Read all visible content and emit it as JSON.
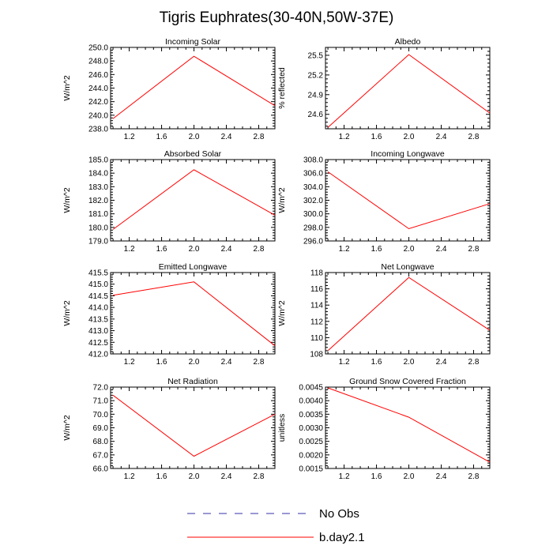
{
  "figure": {
    "title": "Tigris Euphrates(30-40N,50W-37E)"
  },
  "legend": {
    "items": [
      {
        "label": "No Obs",
        "color": "#3333aa",
        "dash": "dashed"
      },
      {
        "label": "b.day2.1",
        "color": "#ff0000",
        "dash": "solid"
      }
    ]
  },
  "chart_data": [
    {
      "type": "line",
      "title": "Incoming Solar",
      "ylabel": "W/m^2",
      "xlim": [
        0.97,
        3.0
      ],
      "ylim": [
        238.0,
        250.0
      ],
      "xticks": [
        "1.2",
        "1.6",
        "2.0",
        "2.4",
        "2.8"
      ],
      "yticks": [
        "238.0",
        "240.0",
        "242.0",
        "244.0",
        "246.0",
        "248.0",
        "250.0"
      ],
      "series": [
        {
          "name": "b.day2.1",
          "color": "#ff0000",
          "x": [
            1,
            2,
            3
          ],
          "y": [
            239.5,
            248.7,
            241.4
          ]
        }
      ]
    },
    {
      "type": "line",
      "title": "Albedo",
      "ylabel": "% reflected",
      "xlim": [
        0.97,
        3.0
      ],
      "ylim": [
        24.38,
        25.62
      ],
      "xticks": [
        "1.2",
        "1.6",
        "2.0",
        "2.4",
        "2.8"
      ],
      "yticks": [
        "24.6",
        "24.9",
        "25.2",
        "25.5"
      ],
      "series": [
        {
          "name": "b.day2.1",
          "color": "#ff0000",
          "x": [
            1,
            2,
            3
          ],
          "y": [
            24.4,
            25.51,
            24.62
          ]
        }
      ]
    },
    {
      "type": "line",
      "title": "Absorbed Solar",
      "ylabel": "W/m^2",
      "xlim": [
        0.97,
        3.0
      ],
      "ylim": [
        179.0,
        185.0
      ],
      "xticks": [
        "1.2",
        "1.6",
        "2.0",
        "2.4",
        "2.8"
      ],
      "yticks": [
        "179.0",
        "180.0",
        "181.0",
        "182.0",
        "183.0",
        "184.0",
        "185.0"
      ],
      "series": [
        {
          "name": "b.day2.1",
          "color": "#ff0000",
          "x": [
            1,
            2,
            3
          ],
          "y": [
            179.85,
            184.25,
            180.9
          ]
        }
      ]
    },
    {
      "type": "line",
      "title": "Incoming Longwave",
      "ylabel": "W/m^2",
      "xlim": [
        0.97,
        3.0
      ],
      "ylim": [
        296.0,
        308.0
      ],
      "xticks": [
        "1.2",
        "1.6",
        "2.0",
        "2.4",
        "2.8"
      ],
      "yticks": [
        "296.0",
        "298.0",
        "300.0",
        "302.0",
        "304.0",
        "306.0",
        "308.0"
      ],
      "series": [
        {
          "name": "b.day2.1",
          "color": "#ff0000",
          "x": [
            1,
            2,
            3
          ],
          "y": [
            306.2,
            297.8,
            301.5
          ]
        }
      ]
    },
    {
      "type": "line",
      "title": "Emitted Longwave",
      "ylabel": "W/m^2",
      "xlim": [
        0.97,
        3.0
      ],
      "ylim": [
        412.0,
        415.5
      ],
      "xticks": [
        "1.2",
        "1.6",
        "2.0",
        "2.4",
        "2.8"
      ],
      "yticks": [
        "412.0",
        "412.5",
        "413.0",
        "413.5",
        "414.0",
        "414.5",
        "415.0",
        "415.5"
      ],
      "series": [
        {
          "name": "b.day2.1",
          "color": "#ff0000",
          "x": [
            1,
            2,
            3
          ],
          "y": [
            414.52,
            415.1,
            412.35
          ]
        }
      ]
    },
    {
      "type": "line",
      "title": "Net Longwave",
      "ylabel": "W/m^2",
      "xlim": [
        0.97,
        3.0
      ],
      "ylim": [
        108.0,
        118.0
      ],
      "xticks": [
        "1.2",
        "1.6",
        "2.0",
        "2.4",
        "2.8"
      ],
      "yticks": [
        "108",
        "110",
        "112",
        "114",
        "116",
        "118"
      ],
      "series": [
        {
          "name": "b.day2.1",
          "color": "#ff0000",
          "x": [
            1,
            2,
            3
          ],
          "y": [
            108.4,
            117.4,
            110.9
          ]
        }
      ]
    },
    {
      "type": "line",
      "title": "Net Radiation",
      "ylabel": "W/m^2",
      "xlim": [
        0.97,
        3.0
      ],
      "ylim": [
        66.0,
        72.0
      ],
      "xticks": [
        "1.2",
        "1.6",
        "2.0",
        "2.4",
        "2.8"
      ],
      "yticks": [
        "66.0",
        "67.0",
        "68.0",
        "69.0",
        "70.0",
        "71.0",
        "72.0"
      ],
      "series": [
        {
          "name": "b.day2.1",
          "color": "#ff0000",
          "x": [
            1,
            2,
            3
          ],
          "y": [
            71.4,
            66.9,
            70.0
          ]
        }
      ]
    },
    {
      "type": "line",
      "title": "Ground Snow Covered Fraction",
      "ylabel": "unitless",
      "xlim": [
        0.97,
        3.0
      ],
      "ylim": [
        0.0015,
        0.0045
      ],
      "xticks": [
        "1.2",
        "1.6",
        "2.0",
        "2.4",
        "2.8"
      ],
      "yticks": [
        "0.0015",
        "0.0020",
        "0.0025",
        "0.0030",
        "0.0035",
        "0.0040",
        "0.0045"
      ],
      "series": [
        {
          "name": "b.day2.1",
          "color": "#ff0000",
          "x": [
            1,
            2,
            3
          ],
          "y": [
            0.00447,
            0.00339,
            0.00173
          ]
        }
      ]
    }
  ]
}
